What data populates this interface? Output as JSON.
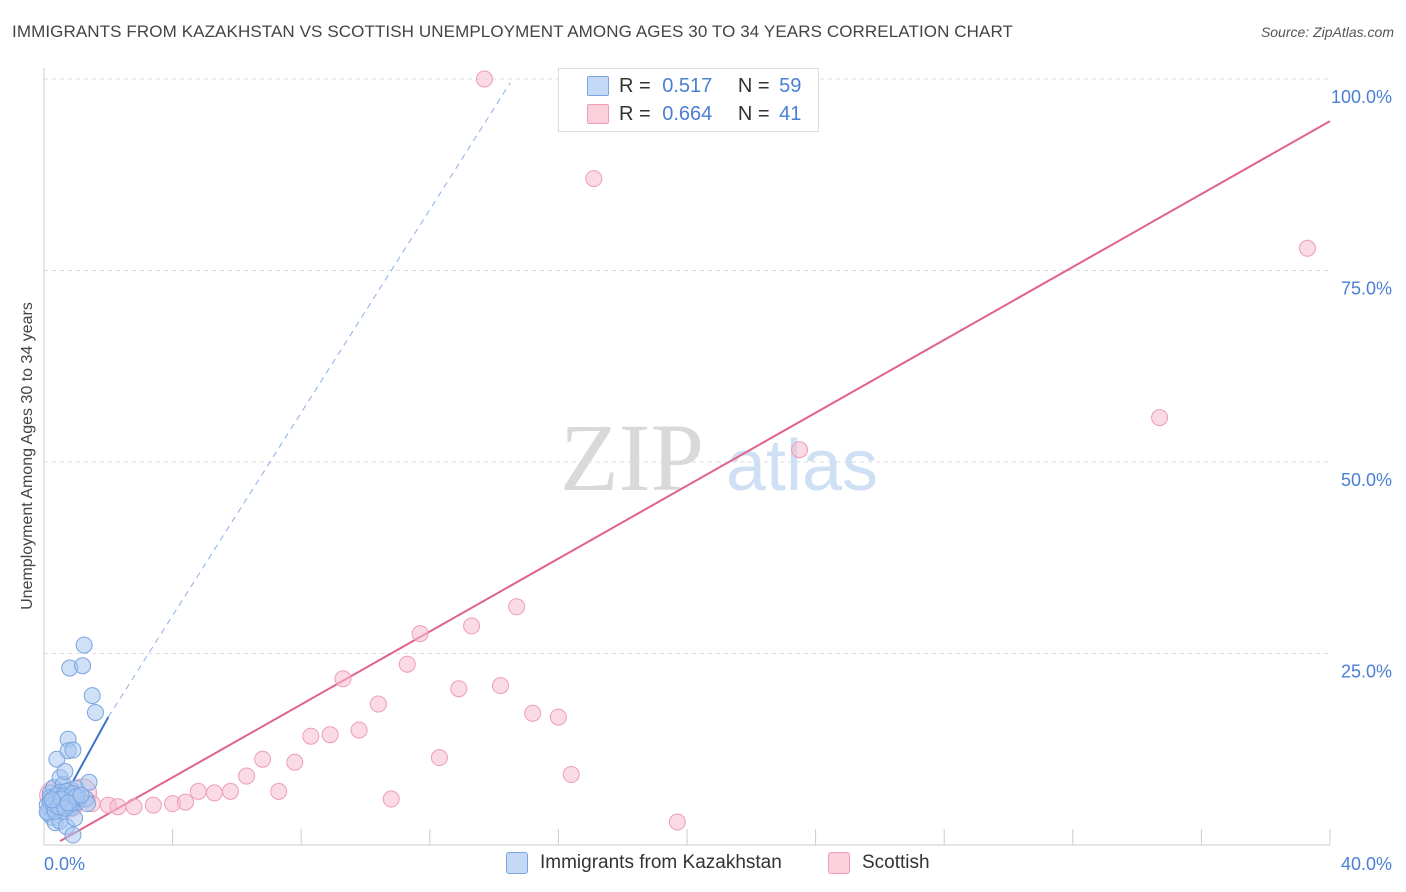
{
  "title": "IMMIGRANTS FROM KAZAKHSTAN VS SCOTTISH UNEMPLOYMENT AMONG AGES 30 TO 34 YEARS CORRELATION CHART",
  "source": "Source: ZipAtlas.com",
  "watermark": {
    "zip": "ZIP",
    "atlas": "atlas"
  },
  "legend_top": [
    {
      "r_label": "R =",
      "r_value": "0.517",
      "n_label": "N =",
      "n_value": "59"
    },
    {
      "r_label": "R =",
      "r_value": "0.664",
      "n_label": "N =",
      "n_value": "41"
    }
  ],
  "legend_bottom": [
    "Immigrants from Kazakhstan",
    "Scottish"
  ],
  "colors": {
    "blue_fill": "#a8c6f0",
    "blue_stroke": "#7aa5e0",
    "blue_line": "#3a72c8",
    "pink_fill": "#f6bccf",
    "pink_stroke": "#ee9db7",
    "pink_line": "#e0628c",
    "tick_text": "#4a7fd4",
    "grid": "#dddddd"
  },
  "chart_data": {
    "type": "scatter",
    "title": "IMMIGRANTS FROM KAZAKHSTAN VS SCOTTISH UNEMPLOYMENT AMONG AGES 30 TO 34 YEARS CORRELATION CHART",
    "xlabel": "",
    "ylabel": "Unemployment Among Ages 30 to 34 years",
    "xlim": [
      0,
      40
    ],
    "ylim": [
      0,
      100
    ],
    "x_tick_labels": [
      "0.0%",
      "40.0%"
    ],
    "y_tick_labels": [
      "25.0%",
      "50.0%",
      "75.0%",
      "100.0%"
    ],
    "y_ticks": [
      25,
      50,
      75,
      100
    ],
    "grid": true,
    "legend_position": "top-center",
    "series": [
      {
        "name": "Immigrants from Kazakhstan",
        "r": 0.517,
        "n": 59,
        "points": [
          [
            0.1,
            5.2
          ],
          [
            0.15,
            4.1
          ],
          [
            0.2,
            6.8
          ],
          [
            0.25,
            3.6
          ],
          [
            0.3,
            7.5
          ],
          [
            0.3,
            5.9
          ],
          [
            0.35,
            2.9
          ],
          [
            0.4,
            11.2
          ],
          [
            0.4,
            4.8
          ],
          [
            0.45,
            6.3
          ],
          [
            0.5,
            8.8
          ],
          [
            0.5,
            3.1
          ],
          [
            0.55,
            5.5
          ],
          [
            0.6,
            7.9
          ],
          [
            0.6,
            4.4
          ],
          [
            0.65,
            9.6
          ],
          [
            0.7,
            6.1
          ],
          [
            0.7,
            2.4
          ],
          [
            0.75,
            13.8
          ],
          [
            0.75,
            12.3
          ],
          [
            0.8,
            5.8
          ],
          [
            0.8,
            23.1
          ],
          [
            0.85,
            7.2
          ],
          [
            0.85,
            4.9
          ],
          [
            0.9,
            12.4
          ],
          [
            0.9,
            1.3
          ],
          [
            0.95,
            3.5
          ],
          [
            0.95,
            6.6
          ],
          [
            1.0,
            7.4
          ],
          [
            1.05,
            5.6
          ],
          [
            1.1,
            6.1
          ],
          [
            1.2,
            23.4
          ],
          [
            1.25,
            26.1
          ],
          [
            1.3,
            6.0
          ],
          [
            1.35,
            5.4
          ],
          [
            1.4,
            8.2
          ],
          [
            1.5,
            19.5
          ],
          [
            1.6,
            17.3
          ],
          [
            0.2,
            6.2
          ],
          [
            0.3,
            4.7
          ],
          [
            0.5,
            6.9
          ],
          [
            0.6,
            5.1
          ],
          [
            0.4,
            6.5
          ],
          [
            0.7,
            7.0
          ],
          [
            0.2,
            5.6
          ],
          [
            0.1,
            4.3
          ],
          [
            0.3,
            5.3
          ],
          [
            0.5,
            5.8
          ],
          [
            0.6,
            6.4
          ],
          [
            0.8,
            5.2
          ],
          [
            0.9,
            6.7
          ],
          [
            1.0,
            6.3
          ],
          [
            0.35,
            4.4
          ],
          [
            0.45,
            5.0
          ],
          [
            0.55,
            6.0
          ],
          [
            0.65,
            4.8
          ],
          [
            0.25,
            5.9
          ],
          [
            0.75,
            5.5
          ],
          [
            1.15,
            6.5
          ]
        ],
        "trend_solid": {
          "x": [
            0.3,
            2.0
          ],
          "y": [
            3.7,
            16.7
          ]
        },
        "trend_dashed": {
          "x": [
            2.0,
            14.5
          ],
          "y": [
            16.7,
            99.5
          ]
        }
      },
      {
        "name": "Scottish",
        "r": 0.664,
        "n": 41,
        "points": [
          [
            0.3,
            6.5
          ],
          [
            0.8,
            5.5
          ],
          [
            1.2,
            6.8
          ],
          [
            1.5,
            5.4
          ],
          [
            2.0,
            5.2
          ],
          [
            2.3,
            5.0
          ],
          [
            2.8,
            5.0
          ],
          [
            3.4,
            5.2
          ],
          [
            4.0,
            5.4
          ],
          [
            4.4,
            5.6
          ],
          [
            4.8,
            7.0
          ],
          [
            5.3,
            6.8
          ],
          [
            5.8,
            7.0
          ],
          [
            6.3,
            9.0
          ],
          [
            6.8,
            11.2
          ],
          [
            7.3,
            7.0
          ],
          [
            7.8,
            10.8
          ],
          [
            8.3,
            14.2
          ],
          [
            8.9,
            14.4
          ],
          [
            9.3,
            21.7
          ],
          [
            9.8,
            15.0
          ],
          [
            10.4,
            18.4
          ],
          [
            10.8,
            6.0
          ],
          [
            11.3,
            23.6
          ],
          [
            11.7,
            27.6
          ],
          [
            12.3,
            11.4
          ],
          [
            12.9,
            20.4
          ],
          [
            13.3,
            28.6
          ],
          [
            14.2,
            20.8
          ],
          [
            14.7,
            31.1
          ],
          [
            15.2,
            17.2
          ],
          [
            16.0,
            16.7
          ],
          [
            16.4,
            9.2
          ],
          [
            13.7,
            100
          ],
          [
            17.1,
            87.0
          ],
          [
            19.7,
            3.0
          ],
          [
            23.5,
            51.6
          ],
          [
            34.7,
            55.8
          ],
          [
            39.3,
            77.9
          ],
          [
            0.5,
            6.0
          ],
          [
            1.0,
            5.8
          ]
        ],
        "trend": {
          "x": [
            0.5,
            40
          ],
          "y": [
            0.5,
            94.5
          ]
        }
      }
    ]
  }
}
